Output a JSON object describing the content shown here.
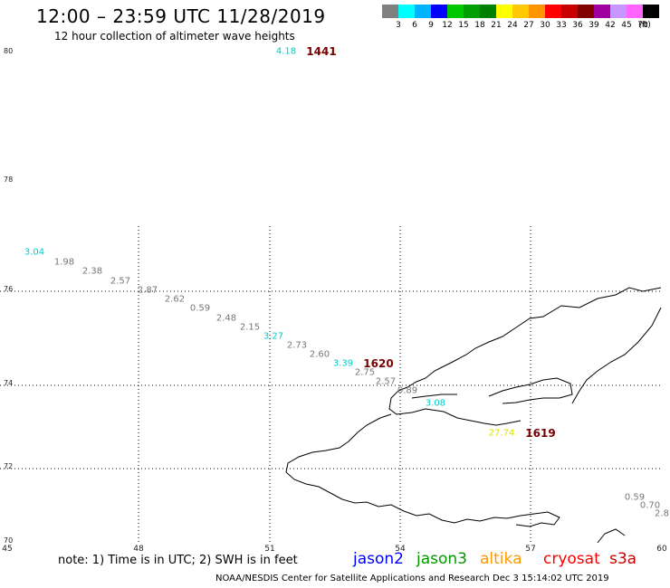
{
  "title": "12:00 – 23:59 UTC 11/28/2019",
  "subtitle": "12 hour collection of altimeter wave heights",
  "color_scale": {
    "colors": [
      "#808080",
      "#00ffff",
      "#00b4ff",
      "#0000ff",
      "#00c800",
      "#00a000",
      "#008000",
      "#ffff00",
      "#ffc800",
      "#ff9600",
      "#ff0000",
      "#c80000",
      "#800000",
      "#a000a0",
      "#c896ff",
      "#ff64ff",
      "#000000"
    ],
    "labels": [
      "3",
      "6",
      "9",
      "12",
      "15",
      "18",
      "21",
      "24",
      "27",
      "30",
      "33",
      "36",
      "39",
      "42",
      "45",
      "70",
      "(ft)"
    ]
  },
  "lat_labels": [
    "80",
    "78",
    "76",
    "74",
    "72",
    "70"
  ],
  "lon_labels": [
    "45",
    "48",
    "51",
    "54",
    "57",
    "60"
  ],
  "wave_values": [
    {
      "text": "4.18",
      "color": "#00cccc"
    },
    {
      "text": "3.04",
      "color": "#00cccc"
    },
    {
      "text": "1.98",
      "color": "#777777"
    },
    {
      "text": "2.38",
      "color": "#777777"
    },
    {
      "text": "2.57",
      "color": "#777777"
    },
    {
      "text": "2.87",
      "color": "#777777"
    },
    {
      "text": "2.62",
      "color": "#777777"
    },
    {
      "text": "0.59",
      "color": "#777777"
    },
    {
      "text": "2.48",
      "color": "#777777"
    },
    {
      "text": "2.15",
      "color": "#777777"
    },
    {
      "text": "3.27",
      "color": "#00cccc"
    },
    {
      "text": "2.73",
      "color": "#777777"
    },
    {
      "text": "2.60",
      "color": "#777777"
    },
    {
      "text": "3.39",
      "color": "#00cccc"
    },
    {
      "text": "2.75",
      "color": "#777777"
    },
    {
      "text": "2.57",
      "color": "#777777"
    },
    {
      "text": "0.89",
      "color": "#777777"
    },
    {
      "text": "3.08",
      "color": "#00cccc"
    },
    {
      "text": "27.74",
      "color": "#e0e000"
    },
    {
      "text": "0.59",
      "color": "#777777"
    },
    {
      "text": "0.70",
      "color": "#777777"
    },
    {
      "text": "2.8",
      "color": "#777777"
    }
  ],
  "pass_times": [
    "1441",
    "1620",
    "1619"
  ],
  "note": "note:  1) Time is in UTC;  2) SWH is in feet",
  "satellites": [
    {
      "name": "jason2",
      "color": "#0000ff"
    },
    {
      "name": "jason3",
      "color": "#009900"
    },
    {
      "name": "altika",
      "color": "#ff9900"
    },
    {
      "name": "cryosat",
      "color": "#ff0000"
    },
    {
      "name": "s3a",
      "color": "#cc0000"
    }
  ],
  "credit": "NOAA/NESDIS Center for Satellite Applications and Research    Dec  3 15:14:02 UTC 2019"
}
